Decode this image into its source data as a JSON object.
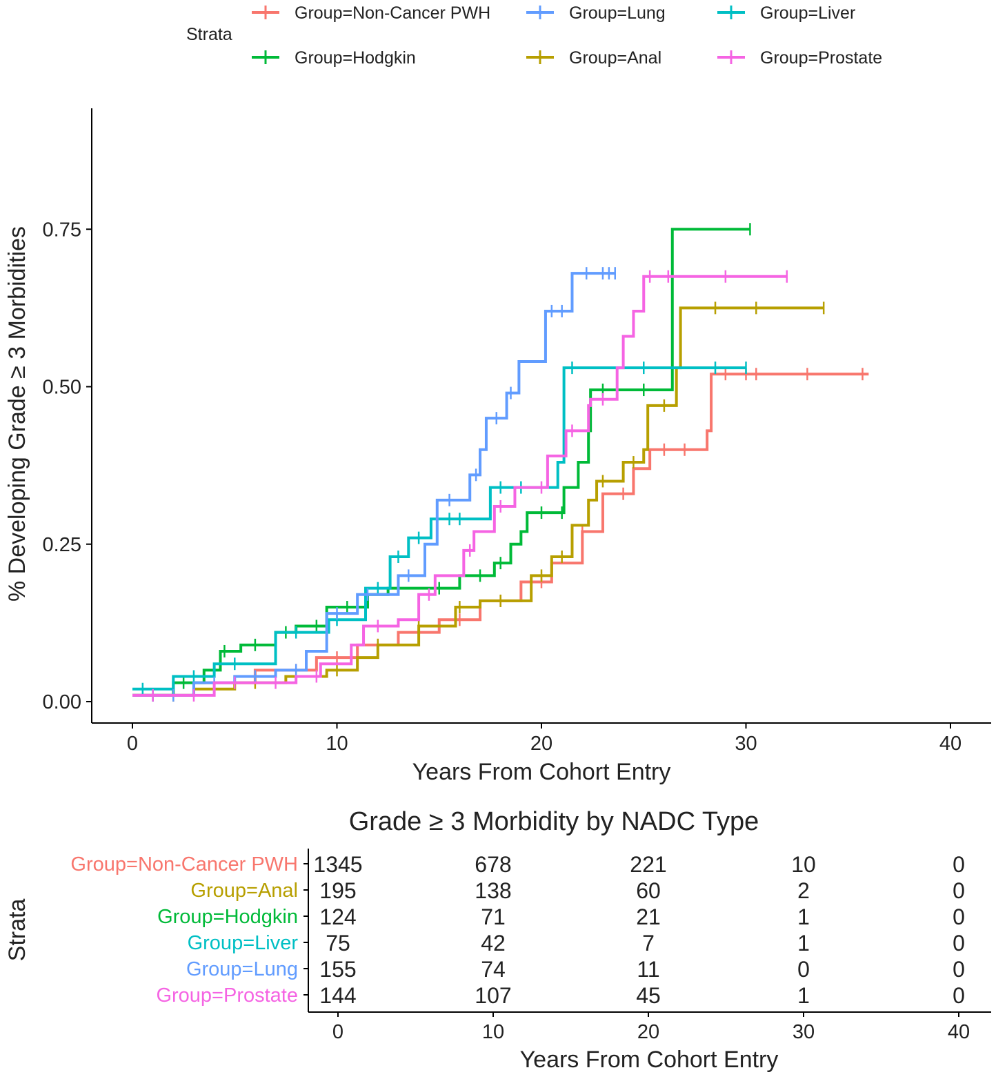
{
  "chart_data": {
    "type": "line",
    "subtype": "kaplan-meier-cumulative-incidence",
    "xlabel": "Years From Cohort Entry",
    "ylabel": "% Developing Grade ≥ 3 Morbidities",
    "xlim": [
      -2,
      42
    ],
    "ylim": [
      -0.03,
      0.95
    ],
    "xticks": [
      0,
      10,
      20,
      30,
      40
    ],
    "xtick_labels": [
      "0",
      "10",
      "20",
      "30",
      "40"
    ],
    "yticks": [
      0,
      0.25,
      0.5,
      0.75
    ],
    "ytick_labels": [
      "0.00",
      "0.25",
      "0.50",
      "0.75"
    ],
    "legend": {
      "title": "Strata",
      "placement": "top"
    },
    "series": [
      {
        "name": "Group=Non-Cancer PWH",
        "color": "#F8766D",
        "steps": [
          [
            0,
            0.01
          ],
          [
            3,
            0.03
          ],
          [
            6,
            0.05
          ],
          [
            9,
            0.07
          ],
          [
            11,
            0.09
          ],
          [
            13,
            0.11
          ],
          [
            15,
            0.13
          ],
          [
            17,
            0.16
          ],
          [
            19,
            0.19
          ],
          [
            20.5,
            0.22
          ],
          [
            22,
            0.27
          ],
          [
            23,
            0.33
          ],
          [
            24.5,
            0.37
          ],
          [
            25.3,
            0.4
          ],
          [
            28.1,
            0.43
          ],
          [
            28.3,
            0.52
          ]
        ],
        "end": 36,
        "censor": [
          2,
          5,
          8,
          10,
          12,
          14,
          16,
          18,
          20,
          22,
          24,
          26,
          27,
          29,
          30,
          30.5,
          33,
          35.7
        ]
      },
      {
        "name": "Group=Anal",
        "color": "#B79F00",
        "steps": [
          [
            0,
            0.01
          ],
          [
            3,
            0.02
          ],
          [
            5,
            0.03
          ],
          [
            7.5,
            0.04
          ],
          [
            9.5,
            0.05
          ],
          [
            11,
            0.07
          ],
          [
            12,
            0.09
          ],
          [
            14,
            0.12
          ],
          [
            15.8,
            0.15
          ],
          [
            17,
            0.16
          ],
          [
            19.5,
            0.2
          ],
          [
            20.5,
            0.23
          ],
          [
            21.5,
            0.28
          ],
          [
            22.3,
            0.32
          ],
          [
            22.7,
            0.35
          ],
          [
            24,
            0.38
          ],
          [
            25,
            0.4
          ],
          [
            25.2,
            0.47
          ],
          [
            26.6,
            0.53
          ],
          [
            26.8,
            0.625
          ]
        ],
        "end": 33.8,
        "censor": [
          2,
          4,
          6,
          8,
          10,
          12,
          14,
          16,
          18,
          20,
          21,
          23,
          24.5,
          26,
          28.5,
          30.5,
          33.8
        ]
      },
      {
        "name": "Group=Hodgkin",
        "color": "#00BA38",
        "steps": [
          [
            0,
            0.01
          ],
          [
            2,
            0.03
          ],
          [
            3.5,
            0.05
          ],
          [
            4.3,
            0.08
          ],
          [
            5.3,
            0.09
          ],
          [
            7,
            0.11
          ],
          [
            8,
            0.12
          ],
          [
            9.5,
            0.15
          ],
          [
            11.5,
            0.17
          ],
          [
            12.5,
            0.18
          ],
          [
            16,
            0.2
          ],
          [
            17.7,
            0.22
          ],
          [
            18.5,
            0.25
          ],
          [
            19,
            0.27
          ],
          [
            19.3,
            0.3
          ],
          [
            21.1,
            0.34
          ],
          [
            21.8,
            0.38
          ],
          [
            22.3,
            0.43
          ],
          [
            22.4,
            0.495
          ],
          [
            26.4,
            0.75
          ]
        ],
        "end": 30.2,
        "censor": [
          1,
          2.5,
          4.5,
          6,
          7.5,
          9,
          10.5,
          13,
          15,
          17,
          18,
          20,
          21,
          23,
          25,
          30.2
        ]
      },
      {
        "name": "Group=Liver",
        "color": "#00BFC4",
        "steps": [
          [
            0,
            0.02
          ],
          [
            2,
            0.04
          ],
          [
            4,
            0.06
          ],
          [
            7,
            0.11
          ],
          [
            9.6,
            0.13
          ],
          [
            11.4,
            0.18
          ],
          [
            12.6,
            0.23
          ],
          [
            13.5,
            0.26
          ],
          [
            14.6,
            0.29
          ],
          [
            17.5,
            0.34
          ],
          [
            20.8,
            0.38
          ],
          [
            21.1,
            0.53
          ]
        ],
        "end": 30,
        "censor": [
          0.5,
          3,
          5,
          8,
          10,
          12,
          13,
          14,
          15.5,
          16,
          18,
          19,
          21.5,
          25,
          28.5,
          30
        ]
      },
      {
        "name": "Group=Lung",
        "color": "#619CFF",
        "steps": [
          [
            0,
            0.01
          ],
          [
            3,
            0.03
          ],
          [
            5,
            0.04
          ],
          [
            7,
            0.05
          ],
          [
            8.5,
            0.08
          ],
          [
            9.5,
            0.14
          ],
          [
            11,
            0.17
          ],
          [
            13,
            0.2
          ],
          [
            14.3,
            0.25
          ],
          [
            14.9,
            0.32
          ],
          [
            16.5,
            0.36
          ],
          [
            17,
            0.4
          ],
          [
            17.3,
            0.45
          ],
          [
            18.3,
            0.49
          ],
          [
            18.9,
            0.54
          ],
          [
            20.2,
            0.62
          ],
          [
            21.5,
            0.68
          ]
        ],
        "end": 23.6,
        "censor": [
          1,
          2,
          4,
          6,
          8,
          10,
          11.5,
          13.5,
          15.5,
          16.8,
          17.8,
          18.5,
          20.5,
          21,
          22.2,
          23,
          23.3,
          23.6
        ]
      },
      {
        "name": "Group=Prostate",
        "color": "#F564E3",
        "steps": [
          [
            0,
            0.01
          ],
          [
            4,
            0.03
          ],
          [
            8,
            0.04
          ],
          [
            9.2,
            0.06
          ],
          [
            10.7,
            0.09
          ],
          [
            11.3,
            0.12
          ],
          [
            13,
            0.13
          ],
          [
            14,
            0.17
          ],
          [
            14.8,
            0.2
          ],
          [
            16.2,
            0.24
          ],
          [
            16.7,
            0.27
          ],
          [
            17.7,
            0.31
          ],
          [
            18.7,
            0.34
          ],
          [
            20.3,
            0.39
          ],
          [
            21.2,
            0.43
          ],
          [
            22.3,
            0.47
          ],
          [
            22.4,
            0.48
          ],
          [
            23.7,
            0.53
          ],
          [
            24,
            0.58
          ],
          [
            24.5,
            0.62
          ],
          [
            25,
            0.675
          ]
        ],
        "end": 32,
        "censor": [
          1,
          3,
          5,
          7,
          9,
          12,
          14.5,
          16.5,
          18,
          20,
          21.5,
          23,
          25.3,
          26.2,
          29,
          32
        ]
      }
    ],
    "risk_table": {
      "title": "Grade  ≥ 3 Morbidity by NADC Type",
      "ylabel": "Strata",
      "xlabel": "Years From Cohort Entry",
      "times": [
        "0",
        "10",
        "20",
        "30",
        "40"
      ],
      "rows": [
        {
          "name": "Group=Non-Cancer PWH",
          "values": [
            "1345",
            "678",
            "221",
            "10",
            "0"
          ]
        },
        {
          "name": "Group=Anal",
          "values": [
            "195",
            "138",
            "60",
            "2",
            "0"
          ]
        },
        {
          "name": "Group=Hodgkin",
          "values": [
            "124",
            "71",
            "21",
            "1",
            "0"
          ]
        },
        {
          "name": "Group=Liver",
          "values": [
            "75",
            "42",
            "7",
            "1",
            "0"
          ]
        },
        {
          "name": "Group=Lung",
          "values": [
            "155",
            "74",
            "11",
            "0",
            "0"
          ]
        },
        {
          "name": "Group=Prostate",
          "values": [
            "144",
            "107",
            "45",
            "1",
            "0"
          ]
        }
      ]
    }
  }
}
